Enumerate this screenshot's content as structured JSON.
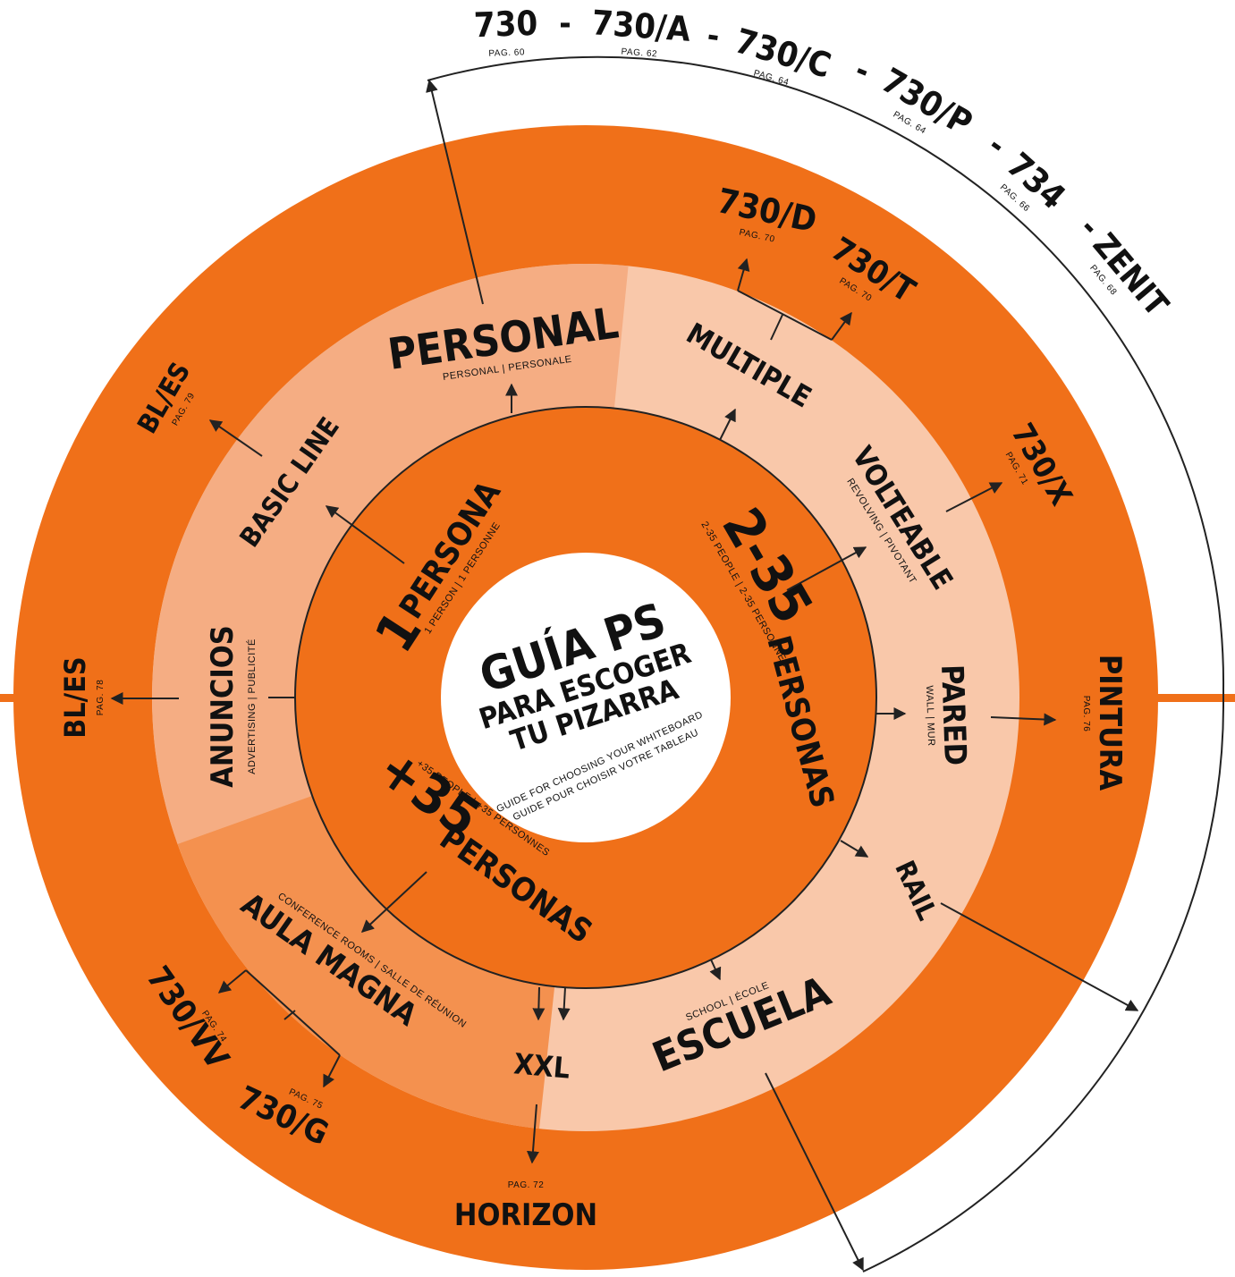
{
  "colors": {
    "orange_dark": "#f07019",
    "orange_mid": "#f4914f",
    "orange_light": "#f5ad83",
    "peach": "#f9c8aa",
    "white": "#ffffff",
    "ink": "#111111"
  },
  "center": {
    "title": "GUÍA PS",
    "subtitle_1": "PARA ESCOGER",
    "subtitle_2": "TU PIZARRA",
    "translation_en": "GUIDE FOR CHOOSING YOUR WHITEBOARD",
    "translation_fr": "GUIDE POUR CHOISIR VOTRE TABLEAU"
  },
  "groups": {
    "one": {
      "number": "1",
      "label": "PERSONA",
      "translation": "1 PERSON | 1 PERSONNE"
    },
    "two": {
      "number": "2-35",
      "label": "PERSONAS",
      "translation": "2-35 PEOPLE | 2-35 PERSONNES"
    },
    "plus": {
      "number": "+35",
      "label": "PERSONAS",
      "translation": "+35 PEOPLE | +35 PERSONNES"
    }
  },
  "categories": {
    "personal": {
      "label": "PERSONAL",
      "translation": "PERSONAL | PERSONALE"
    },
    "basic_line": {
      "label": "BASIC LINE"
    },
    "anuncios": {
      "label": "ANUNCIOS",
      "translation": "ADVERTISING | PUBLICITÉ"
    },
    "multiple": {
      "label": "MULTIPLE"
    },
    "volteable": {
      "label": "VOLTEABLE",
      "translation": "REVOLVING | PIVOTANT"
    },
    "pared": {
      "label": "PARED",
      "translation": "WALL | MUR"
    },
    "rail": {
      "label": "RAIL"
    },
    "escuela": {
      "label": "ESCUELA",
      "translation": "SCHOOL | ÉCOLE"
    },
    "xxl": {
      "label": "XXL"
    },
    "aula_magna": {
      "label": "AULA MAGNA",
      "translation": "CONFERENCE ROOMS | SALLE DE RÉUNION"
    }
  },
  "products": {
    "bles_top": {
      "name": "BL/ES",
      "page": "PAG. 79"
    },
    "bles_left": {
      "name": "BL/ES",
      "page": "PAG. 78"
    },
    "d730": {
      "name": "730/D",
      "page": "PAG. 70"
    },
    "t730": {
      "name": "730/T",
      "page": "PAG. 70"
    },
    "x730": {
      "name": "730/X",
      "page": "PAG. 71"
    },
    "pintura": {
      "name": "PINTURA",
      "page": "PAG. 76"
    },
    "horizon": {
      "name": "HORIZON",
      "page": "PAG. 72"
    },
    "vv730": {
      "name": "730/VV",
      "page": "PAG. 74"
    },
    "g730": {
      "name": "730/G",
      "page": "PAG. 75"
    }
  },
  "top_arc": {
    "items": [
      {
        "name": "730",
        "page": "PAG. 60"
      },
      {
        "name": "730/A",
        "page": "PAG. 62"
      },
      {
        "name": "730/C",
        "page": "PAG. 64"
      },
      {
        "name": "730/P",
        "page": "PAG. 64"
      },
      {
        "name": "734",
        "page": "PAG. 66"
      },
      {
        "name": "ZENIT",
        "page": "PAG. 68"
      }
    ],
    "separator": "-"
  }
}
